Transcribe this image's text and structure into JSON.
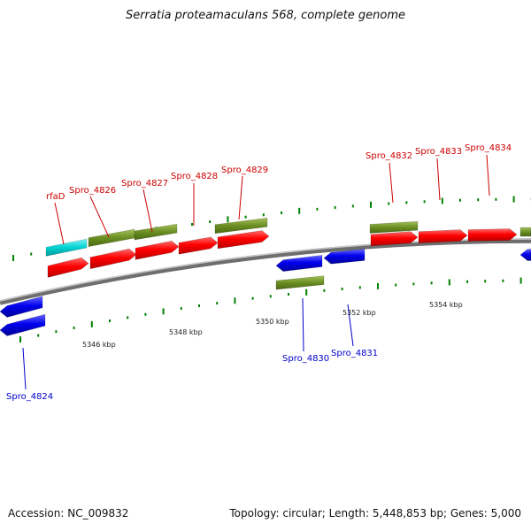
{
  "title": "Serratia proteamaculans 568, complete genome",
  "footer": {
    "accession": "Accession: NC_009832",
    "summary": "Topology: circular; Length: 5,448,853 bp; Genes: 5,000"
  },
  "colors": {
    "forward_cds": "#ff0000",
    "reverse_cds": "#0000ee",
    "gene": "#6b8e23",
    "rna": "#00cccc",
    "backbone": "#808080",
    "tick": "#008000",
    "forward_label": "#cc0000",
    "reverse_label": "#0000cc"
  },
  "scale_labels": [
    {
      "text": "5346 kbp"
    },
    {
      "text": "5348 kbp"
    },
    {
      "text": "5350 kbp"
    },
    {
      "text": "5352 kbp"
    },
    {
      "text": "5354 kbp"
    }
  ],
  "gene_labels": [
    {
      "text": "rfaD",
      "strand": "forward"
    },
    {
      "text": "Spro_4826",
      "strand": "forward"
    },
    {
      "text": "Spro_4827",
      "strand": "forward"
    },
    {
      "text": "Spro_4828",
      "strand": "forward"
    },
    {
      "text": "Spro_4829",
      "strand": "forward"
    },
    {
      "text": "Spro_4832",
      "strand": "forward"
    },
    {
      "text": "Spro_4833",
      "strand": "forward"
    },
    {
      "text": "Spro_4834",
      "strand": "forward"
    },
    {
      "text": "Spro_4824",
      "strand": "reverse"
    },
    {
      "text": "Spro_4830",
      "strand": "reverse"
    },
    {
      "text": "Spro_4831",
      "strand": "reverse"
    }
  ]
}
